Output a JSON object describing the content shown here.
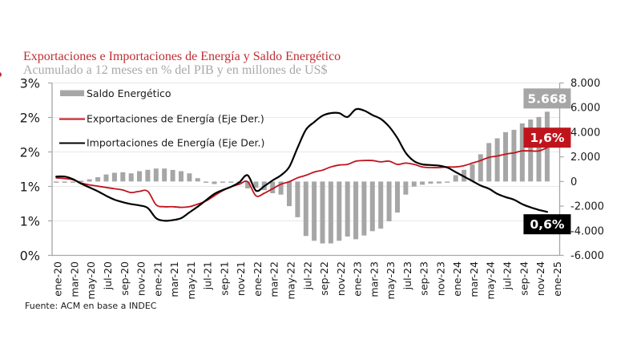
{
  "chart_data": {
    "type": "bar",
    "title": "Exportaciones e Importaciones de Energía y Saldo Energético",
    "subtitle": "Acumulado a 12 meses en % del PIB y en millones de US$",
    "source": "Fuente: ACM en base a INDEC",
    "colors": {
      "title": "#be2d32",
      "subtitle": "#a8a8a8",
      "saldo": "#a6a6a6",
      "exportaciones": "#c0141c",
      "importaciones": "#000000",
      "axis": "#a6a6a6",
      "grid": "#e8e8e8"
    },
    "grid": true,
    "categories": [
      "ene-20",
      "feb-20",
      "mar-20",
      "abr-20",
      "may-20",
      "jun-20",
      "jul-20",
      "ago-20",
      "sep-20",
      "oct-20",
      "nov-20",
      "dic-20",
      "ene-21",
      "feb-21",
      "mar-21",
      "abr-21",
      "may-21",
      "jun-21",
      "jul-21",
      "ago-21",
      "sep-21",
      "oct-21",
      "nov-21",
      "dic-21",
      "ene-22",
      "feb-22",
      "mar-22",
      "abr-22",
      "may-22",
      "jun-22",
      "jul-22",
      "ago-22",
      "sep-22",
      "oct-22",
      "nov-22",
      "dic-22",
      "ene-23",
      "feb-23",
      "mar-23",
      "abr-23",
      "may-23",
      "jun-23",
      "jul-23",
      "ago-23",
      "sep-23",
      "oct-23",
      "nov-23",
      "dic-23",
      "ene-24",
      "feb-24",
      "mar-24",
      "abr-24",
      "may-24",
      "jun-24",
      "jul-24",
      "ago-24",
      "sep-24",
      "oct-24",
      "nov-24",
      "dic-24",
      "ene-25"
    ],
    "x_tick_labels": [
      "ene-20",
      "mar-20",
      "may-20",
      "jul-20",
      "sep-20",
      "nov-20",
      "ene-21",
      "mar-21",
      "may-21",
      "jul-21",
      "sep-21",
      "nov-21",
      "ene-22",
      "mar-22",
      "may-22",
      "jul-22",
      "sep-22",
      "nov-22",
      "ene-23",
      "mar-23",
      "may-23",
      "jul-23",
      "sep-23",
      "nov-23",
      "ene-24",
      "mar-24",
      "may-24",
      "jul-24",
      "sep-24",
      "nov-24",
      "ene-25"
    ],
    "left_axis": {
      "unit": "% del PIB",
      "range": [
        0,
        3
      ],
      "ticks": [
        0,
        0.6,
        1.2,
        1.8,
        2.4,
        3.0
      ],
      "tick_labels": [
        "0%",
        "1%",
        "1%",
        "2%",
        "2%",
        "3%"
      ]
    },
    "right_axis": {
      "unit": "millones de US$",
      "range": [
        -6000,
        8000
      ],
      "ticks": [
        -6000,
        -4000,
        -2000,
        0,
        2000,
        4000,
        6000,
        8000
      ],
      "tick_labels": [
        "-6.000",
        "-4.000",
        "-2.000",
        "0",
        "2.000",
        "4.000",
        "6.000",
        "8.000"
      ]
    },
    "line_axis": {
      "visible": false,
      "unit": "% del PIB",
      "range": [
        -0.08,
        2.61
      ]
    },
    "series": [
      {
        "name": "Saldo Energético",
        "type": "bar",
        "axis": "right",
        "color_key": "saldo",
        "values": [
          -100,
          -100,
          -60,
          60,
          180,
          350,
          570,
          710,
          750,
          660,
          840,
          950,
          1050,
          1050,
          940,
          840,
          660,
          270,
          -50,
          -200,
          -70,
          -50,
          -60,
          -560,
          -500,
          -700,
          -950,
          -1060,
          -2000,
          -2900,
          -4420,
          -4810,
          -5030,
          -5030,
          -4810,
          -4470,
          -4690,
          -4380,
          -4030,
          -3820,
          -3230,
          -2520,
          -1060,
          -410,
          -260,
          -170,
          -150,
          -50,
          520,
          950,
          1390,
          2210,
          3120,
          3510,
          4010,
          4200,
          4720,
          5030,
          5240,
          5668,
          null
        ]
      },
      {
        "name": "Exportaciones de Energía (Eje Der.)",
        "type": "line",
        "axis": "line",
        "color_key": "exportaciones",
        "values": [
          1.13,
          1.12,
          1.1,
          1.05,
          1.02,
          1.0,
          0.98,
          0.96,
          0.94,
          0.9,
          0.92,
          0.92,
          0.71,
          0.68,
          0.68,
          0.67,
          0.68,
          0.72,
          0.77,
          0.85,
          0.93,
          0.99,
          1.03,
          1.07,
          0.85,
          0.89,
          0.96,
          1.03,
          1.07,
          1.13,
          1.17,
          1.22,
          1.25,
          1.3,
          1.33,
          1.34,
          1.39,
          1.4,
          1.4,
          1.38,
          1.39,
          1.34,
          1.36,
          1.34,
          1.3,
          1.29,
          1.29,
          1.3,
          1.3,
          1.32,
          1.36,
          1.4,
          1.45,
          1.47,
          1.5,
          1.52,
          1.55,
          1.55,
          1.55,
          1.6,
          null
        ]
      },
      {
        "name": "Importaciones de Energía (Eje Der.)",
        "type": "line",
        "axis": "line",
        "color_key": "importaciones",
        "values": [
          1.15,
          1.15,
          1.11,
          1.04,
          0.98,
          0.92,
          0.85,
          0.79,
          0.75,
          0.72,
          0.7,
          0.66,
          0.5,
          0.46,
          0.47,
          0.5,
          0.59,
          0.68,
          0.78,
          0.88,
          0.94,
          0.99,
          1.06,
          1.17,
          0.93,
          1.0,
          1.09,
          1.17,
          1.3,
          1.6,
          1.88,
          2.0,
          2.1,
          2.14,
          2.14,
          2.08,
          2.2,
          2.18,
          2.11,
          2.05,
          1.93,
          1.75,
          1.52,
          1.39,
          1.34,
          1.33,
          1.32,
          1.29,
          1.22,
          1.15,
          1.08,
          1.01,
          0.96,
          0.88,
          0.83,
          0.79,
          0.72,
          0.67,
          0.63,
          0.6,
          null
        ]
      }
    ],
    "legend": {
      "position": "top-left",
      "entries": [
        {
          "label": "Saldo Energético",
          "symbol": "bar",
          "color_key": "saldo"
        },
        {
          "label": "Exportaciones de Energía (Eje Der.)",
          "symbol": "line",
          "color_key": "exportaciones"
        },
        {
          "label": "Importaciones de Energía (Eje Der.)",
          "symbol": "line",
          "color_key": "importaciones"
        }
      ]
    },
    "annotations": [
      {
        "text": "5.668",
        "series_index": 0,
        "placement": "above",
        "color_key": "saldo"
      },
      {
        "text": "1,6%",
        "series_index": 1,
        "placement": "above",
        "color_key": "exportaciones"
      },
      {
        "text": "0,6%",
        "series_index": 2,
        "placement": "below",
        "color_key": "importaciones"
      }
    ]
  }
}
